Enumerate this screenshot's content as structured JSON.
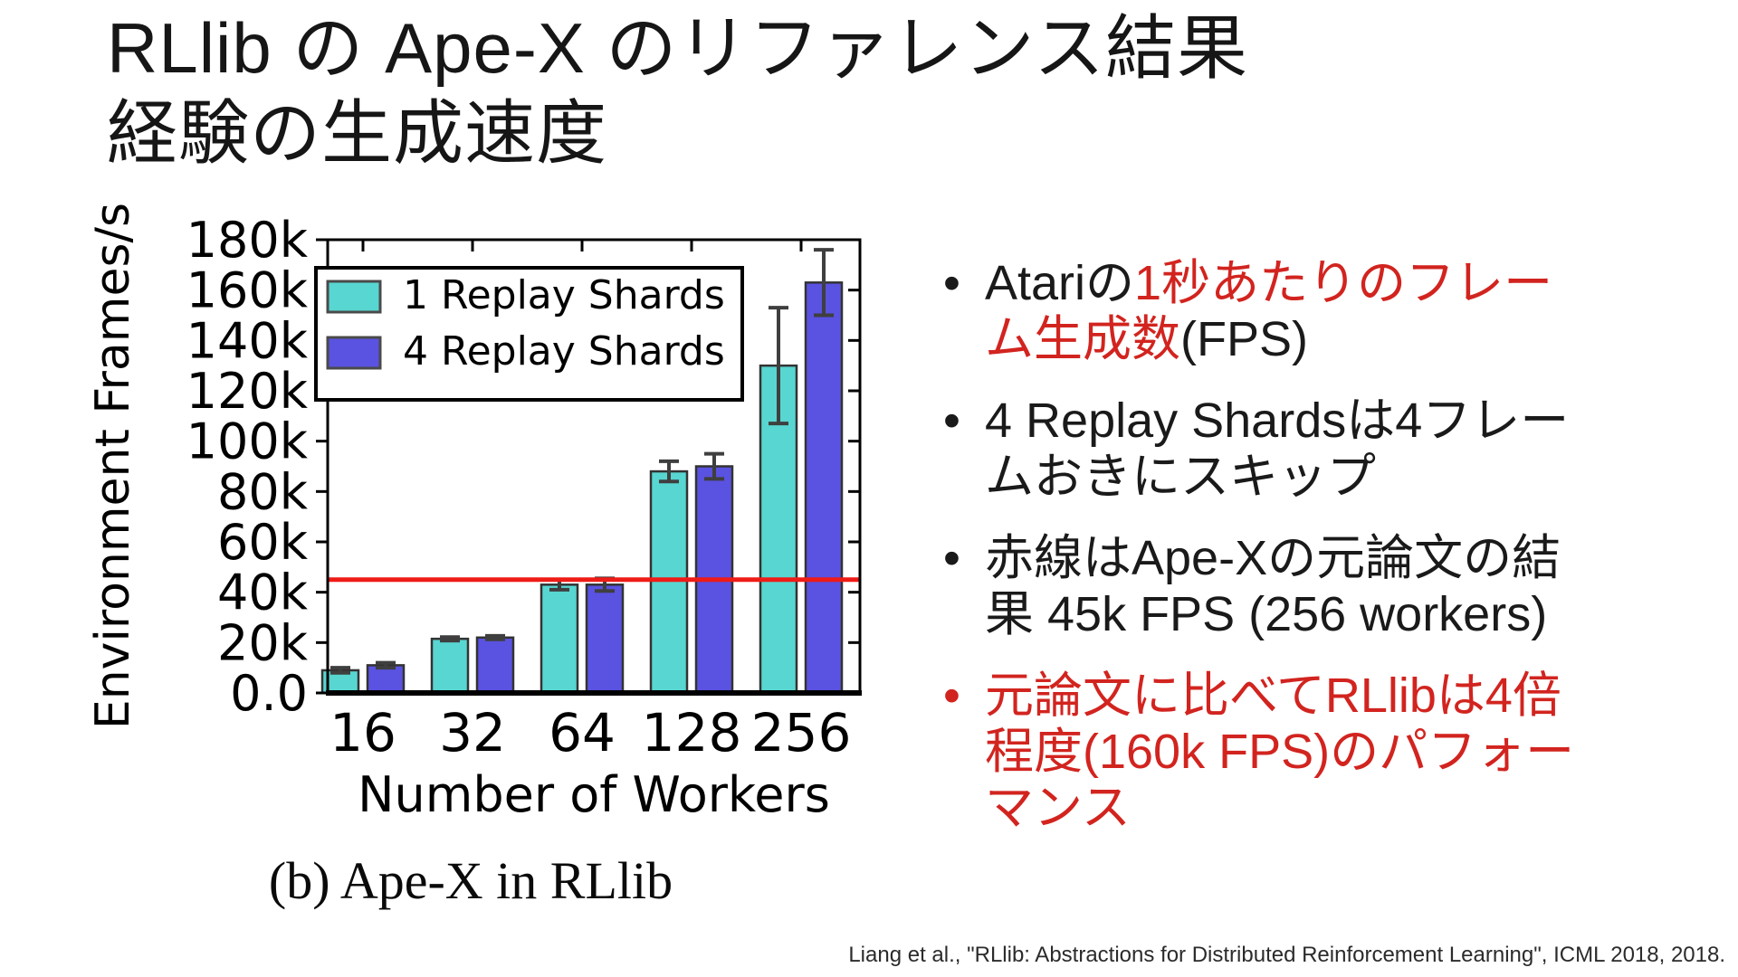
{
  "slide": {
    "title_line1": "RLlib の Ape-X のリファレンス結果",
    "title_line2": "経験の生成速度",
    "caption": "(b)  Ape-X in RLlib",
    "citation": "Liang et al., \"RLlib: Abstractions for Distributed Reinforcement Learning\", ICML 2018, 2018."
  },
  "colors": {
    "accent_red_text": "#d2241f",
    "reference_line_red": "#ee1b17",
    "series1_teal": "#58d6d1",
    "series2_blue": "#5a52e0",
    "bar_edge": "#333333",
    "error_bar": "#3f3f3f",
    "axis_black": "#000000",
    "text_black": "#1a1a1a"
  },
  "chart_data": {
    "type": "bar",
    "title": "",
    "xlabel": "Number of Workers",
    "ylabel": "Environment Frames/s",
    "categories": [
      "16",
      "32",
      "64",
      "128",
      "256"
    ],
    "series": [
      {
        "name": "1 Replay Shards",
        "color": "#58d6d1",
        "values_k": [
          9,
          21.5,
          43,
          88,
          130
        ],
        "errors_k": [
          1,
          0.7,
          2,
          4,
          23
        ]
      },
      {
        "name": "4 Replay Shards",
        "color": "#5a52e0",
        "values_k": [
          11,
          22,
          43,
          90,
          163
        ],
        "errors_k": [
          1,
          0.7,
          2.5,
          5,
          13
        ]
      }
    ],
    "reference_line_k": 45,
    "y_ticks": [
      {
        "label": "0.0",
        "value_k": 0
      },
      {
        "label": "20k",
        "value_k": 20
      },
      {
        "label": "40k",
        "value_k": 40
      },
      {
        "label": "60k",
        "value_k": 60
      },
      {
        "label": "80k",
        "value_k": 80
      },
      {
        "label": "100k",
        "value_k": 100
      },
      {
        "label": "120k",
        "value_k": 120
      },
      {
        "label": "140k",
        "value_k": 140
      },
      {
        "label": "160k",
        "value_k": 160
      },
      {
        "label": "180k",
        "value_k": 180
      }
    ],
    "ylim_k": [
      0,
      180
    ],
    "grid": false,
    "legend_position": "upper left"
  },
  "bullets": {
    "items": [
      {
        "marker_color": "#1a1a1a",
        "lines": [
          [
            {
              "t": "Atariの",
              "c": "black"
            },
            {
              "t": "1秒あたりのフレー",
              "c": "red"
            }
          ],
          [
            {
              "t": "ム生成数",
              "c": "red"
            },
            {
              "t": "(FPS)",
              "c": "black"
            }
          ]
        ]
      },
      {
        "marker_color": "#1a1a1a",
        "lines": [
          [
            {
              "t": "4 Replay Shardsは4フレー",
              "c": "black"
            }
          ],
          [
            {
              "t": "ムおきにスキップ",
              "c": "black"
            }
          ]
        ]
      },
      {
        "marker_color": "#1a1a1a",
        "lines": [
          [
            {
              "t": "赤線はApe-Xの元論文の結",
              "c": "black"
            }
          ],
          [
            {
              "t": "果 45k FPS (256 workers)",
              "c": "black"
            }
          ]
        ]
      },
      {
        "marker_color": "#d2241f",
        "lines": [
          [
            {
              "t": "元論文に比べてRLlibは4倍",
              "c": "red"
            }
          ],
          [
            {
              "t": "程度(160k FPS)のパフォー",
              "c": "red"
            }
          ],
          [
            {
              "t": "マンス",
              "c": "red"
            }
          ]
        ]
      }
    ]
  }
}
